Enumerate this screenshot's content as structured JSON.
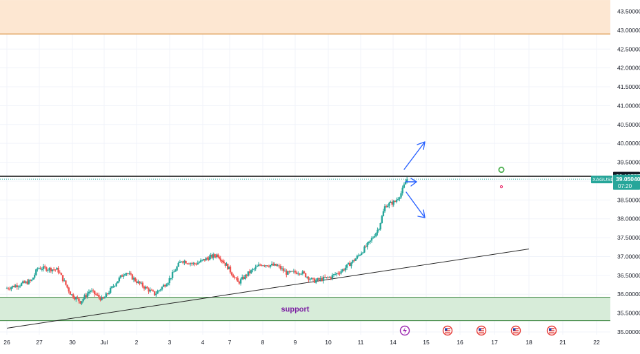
{
  "chart_data": {
    "type": "candlestick",
    "symbol": "XAGUSD",
    "last_price": "39.05040",
    "countdown": "07:20",
    "resistance_price": "39.12777",
    "zone_label": "support",
    "ylim": [
      35.0,
      43.8
    ],
    "y_ticks": [
      "35.00000",
      "35.50000",
      "36.00000",
      "36.50000",
      "37.00000",
      "37.50000",
      "38.00000",
      "38.50000",
      "39.00000",
      "39.50000",
      "40.00000",
      "40.50000",
      "41.00000",
      "41.50000",
      "42.00000",
      "42.50000",
      "43.00000",
      "43.50000"
    ],
    "x_ticks": [
      "26",
      "27",
      "30",
      "Jul",
      "2",
      "3",
      "4",
      "7",
      "8",
      "9",
      "10",
      "11",
      "14",
      "15",
      "16",
      "17",
      "18",
      "21",
      "22"
    ],
    "supply_zone": [
      42.9,
      43.8
    ],
    "support_zone": [
      35.3,
      35.92
    ],
    "trendline": [
      [
        0,
        35.1
      ],
      [
        16,
        37.2
      ]
    ],
    "price_path": [
      [
        0,
        36.15
      ],
      [
        0.8,
        36.35
      ],
      [
        1.0,
        36.7
      ],
      [
        1.6,
        36.65
      ],
      [
        2.0,
        36.0
      ],
      [
        2.3,
        35.8
      ],
      [
        2.6,
        36.1
      ],
      [
        3.0,
        35.85
      ],
      [
        3.4,
        36.3
      ],
      [
        3.7,
        36.6
      ],
      [
        4.1,
        36.3
      ],
      [
        4.6,
        36.0
      ],
      [
        5.0,
        36.35
      ],
      [
        5.4,
        36.9
      ],
      [
        5.8,
        36.8
      ],
      [
        6.2,
        36.95
      ],
      [
        6.6,
        37.05
      ],
      [
        7.0,
        36.7
      ],
      [
        7.3,
        36.3
      ],
      [
        7.6,
        36.55
      ],
      [
        8.0,
        36.8
      ],
      [
        8.5,
        36.75
      ],
      [
        8.8,
        36.55
      ],
      [
        9.2,
        36.6
      ],
      [
        9.6,
        36.35
      ],
      [
        10.1,
        36.45
      ],
      [
        10.5,
        36.65
      ],
      [
        10.9,
        36.95
      ],
      [
        11.3,
        37.35
      ],
      [
        11.6,
        37.75
      ],
      [
        11.8,
        38.35
      ],
      [
        12.1,
        38.45
      ],
      [
        12.3,
        38.7
      ],
      [
        12.45,
        39.05
      ]
    ],
    "markers": [
      {
        "x": 15.2,
        "y": 39.3,
        "color": "#4caf50"
      },
      {
        "x": 15.2,
        "y": 38.85,
        "color": "#e91e63"
      }
    ]
  }
}
